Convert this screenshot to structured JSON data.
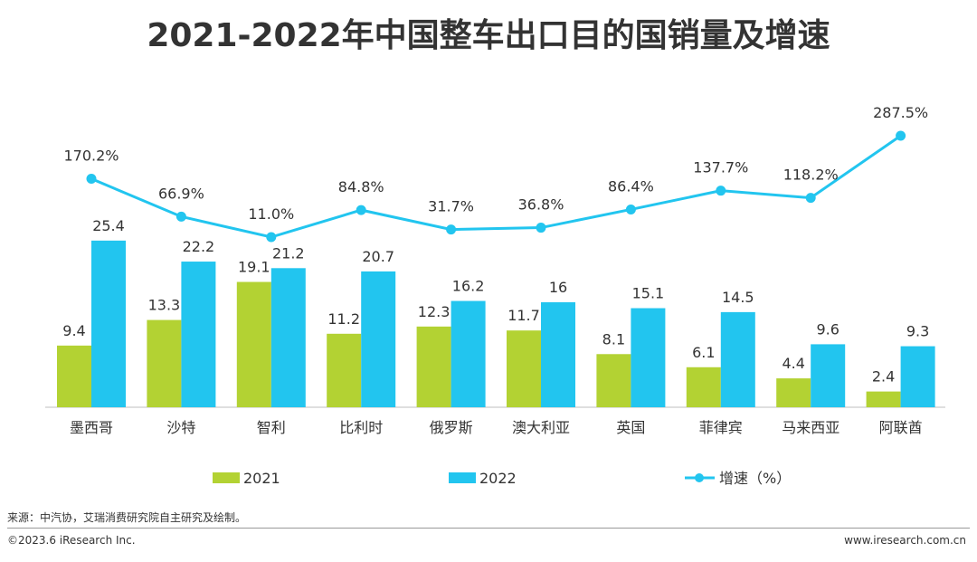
{
  "title": "2021-2022年中国整车出口目的国销量及增速",
  "source": "来源：中汽协，艾瑞消费研究院自主研究及绘制。",
  "copyright": "©2023.6 iResearch Inc.",
  "website": "www.iresearch.com.cn",
  "colors": {
    "s2021": "#b3d233",
    "s2022": "#22c5ef",
    "growth": "#22c5ef"
  },
  "chart_data": {
    "type": "bar",
    "categories": [
      "墨西哥",
      "沙特",
      "智利",
      "比利时",
      "俄罗斯",
      "澳大利亚",
      "英国",
      "菲律宾",
      "马来西亚",
      "阿联酋"
    ],
    "series": [
      {
        "name": "2021",
        "type": "bar",
        "values": [
          9.4,
          13.3,
          19.1,
          11.2,
          12.3,
          11.7,
          8.1,
          6.1,
          4.4,
          2.4
        ]
      },
      {
        "name": "2022",
        "type": "bar",
        "values": [
          25.4,
          22.2,
          21.2,
          20.7,
          16.2,
          16,
          15.1,
          14.5,
          9.6,
          9.3
        ]
      }
    ],
    "line_series": {
      "name": "增速（%）",
      "values": [
        170.2,
        66.9,
        11.0,
        84.8,
        31.7,
        36.8,
        86.4,
        137.7,
        118.2,
        287.5
      ],
      "labels": [
        "170.2%",
        "66.9%",
        "11.0%",
        "84.8%",
        "31.7%",
        "36.8%",
        "86.4%",
        "137.7%",
        "118.2%",
        "287.5%"
      ]
    },
    "legend": {
      "position": "bottom",
      "entries": [
        "2021",
        "2022",
        "增速（%）"
      ]
    }
  }
}
